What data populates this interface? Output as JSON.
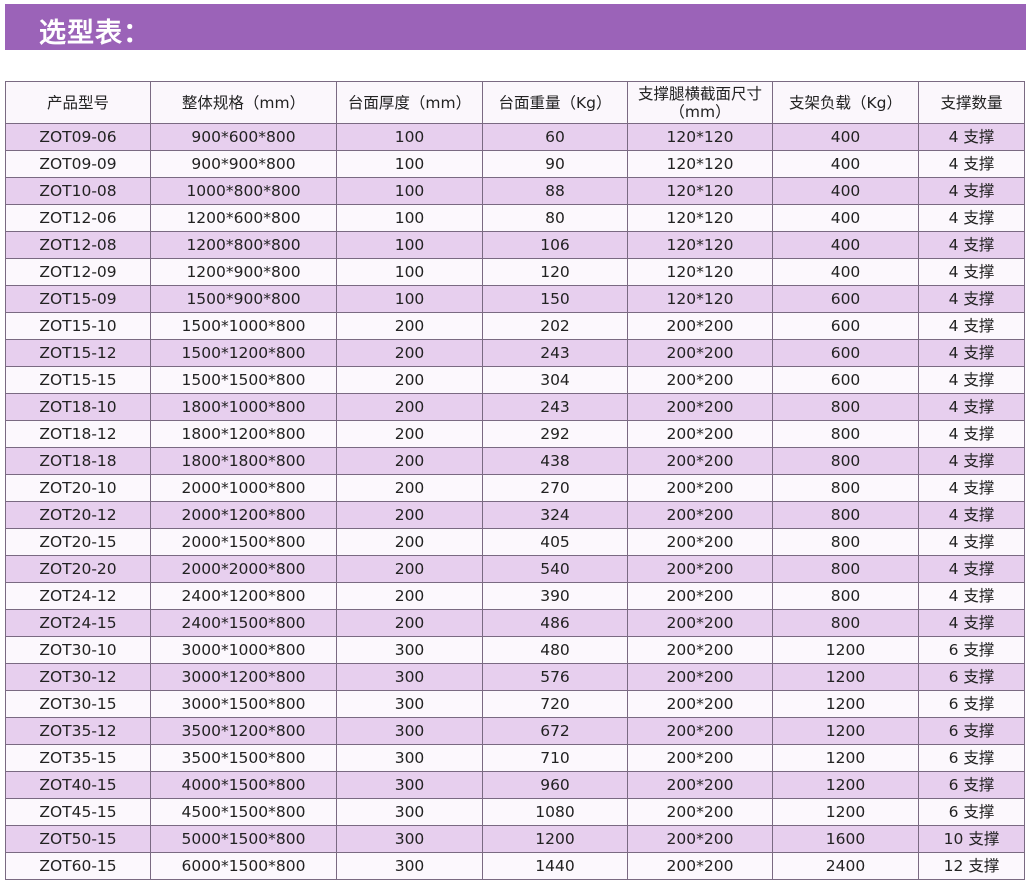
{
  "title": "选型表：",
  "columns": [
    "产品型号",
    "整体规格（mm）",
    "台面厚度（mm）",
    "台面重量（Kg）",
    "支撑腿横截面尺寸（mm）",
    "支架负载（Kg）",
    "支撑数量"
  ],
  "rows": [
    [
      "ZOT09-06",
      "900*600*800",
      "100",
      "60",
      "120*120",
      "400",
      "4 支撑"
    ],
    [
      "ZOT09-09",
      "900*900*800",
      "100",
      "90",
      "120*120",
      "400",
      "4 支撑"
    ],
    [
      "ZOT10-08",
      "1000*800*800",
      "100",
      "88",
      "120*120",
      "400",
      "4 支撑"
    ],
    [
      "ZOT12-06",
      "1200*600*800",
      "100",
      "80",
      "120*120",
      "400",
      "4 支撑"
    ],
    [
      "ZOT12-08",
      "1200*800*800",
      "100",
      "106",
      "120*120",
      "400",
      "4 支撑"
    ],
    [
      "ZOT12-09",
      "1200*900*800",
      "100",
      "120",
      "120*120",
      "400",
      "4 支撑"
    ],
    [
      "ZOT15-09",
      "1500*900*800",
      "100",
      "150",
      "120*120",
      "600",
      "4 支撑"
    ],
    [
      "ZOT15-10",
      "1500*1000*800",
      "200",
      "202",
      "200*200",
      "600",
      "4 支撑"
    ],
    [
      "ZOT15-12",
      "1500*1200*800",
      "200",
      "243",
      "200*200",
      "600",
      "4 支撑"
    ],
    [
      "ZOT15-15",
      "1500*1500*800",
      "200",
      "304",
      "200*200",
      "600",
      "4 支撑"
    ],
    [
      "ZOT18-10",
      "1800*1000*800",
      "200",
      "243",
      "200*200",
      "800",
      "4 支撑"
    ],
    [
      "ZOT18-12",
      "1800*1200*800",
      "200",
      "292",
      "200*200",
      "800",
      "4 支撑"
    ],
    [
      "ZOT18-18",
      "1800*1800*800",
      "200",
      "438",
      "200*200",
      "800",
      "4 支撑"
    ],
    [
      "ZOT20-10",
      "2000*1000*800",
      "200",
      "270",
      "200*200",
      "800",
      "4 支撑"
    ],
    [
      "ZOT20-12",
      "2000*1200*800",
      "200",
      "324",
      "200*200",
      "800",
      "4 支撑"
    ],
    [
      "ZOT20-15",
      "2000*1500*800",
      "200",
      "405",
      "200*200",
      "800",
      "4 支撑"
    ],
    [
      "ZOT20-20",
      "2000*2000*800",
      "200",
      "540",
      "200*200",
      "800",
      "4 支撑"
    ],
    [
      "ZOT24-12",
      "2400*1200*800",
      "200",
      "390",
      "200*200",
      "800",
      "4 支撑"
    ],
    [
      "ZOT24-15",
      "2400*1500*800",
      "200",
      "486",
      "200*200",
      "800",
      "4 支撑"
    ],
    [
      "ZOT30-10",
      "3000*1000*800",
      "300",
      "480",
      "200*200",
      "1200",
      "6 支撑"
    ],
    [
      "ZOT30-12",
      "3000*1200*800",
      "300",
      "576",
      "200*200",
      "1200",
      "6 支撑"
    ],
    [
      "ZOT30-15",
      "3000*1500*800",
      "300",
      "720",
      "200*200",
      "1200",
      "6 支撑"
    ],
    [
      "ZOT35-12",
      "3500*1200*800",
      "300",
      "672",
      "200*200",
      "1200",
      "6 支撑"
    ],
    [
      "ZOT35-15",
      "3500*1500*800",
      "300",
      "710",
      "200*200",
      "1200",
      "6 支撑"
    ],
    [
      "ZOT40-15",
      "4000*1500*800",
      "300",
      "960",
      "200*200",
      "1200",
      "6 支撑"
    ],
    [
      "ZOT45-15",
      "4500*1500*800",
      "300",
      "1080",
      "200*200",
      "1200",
      "6 支撑"
    ],
    [
      "ZOT50-15",
      "5000*1500*800",
      "300",
      "1200",
      "200*200",
      "1600",
      "10 支撑"
    ],
    [
      "ZOT60-15",
      "6000*1500*800",
      "300",
      "1440",
      "200*200",
      "2400",
      "12 支撑"
    ]
  ],
  "colors": {
    "banner": "#9b63b8",
    "row_odd": "#e7cfee",
    "row_even": "#fcf8fd",
    "border": "#7a6a82"
  }
}
